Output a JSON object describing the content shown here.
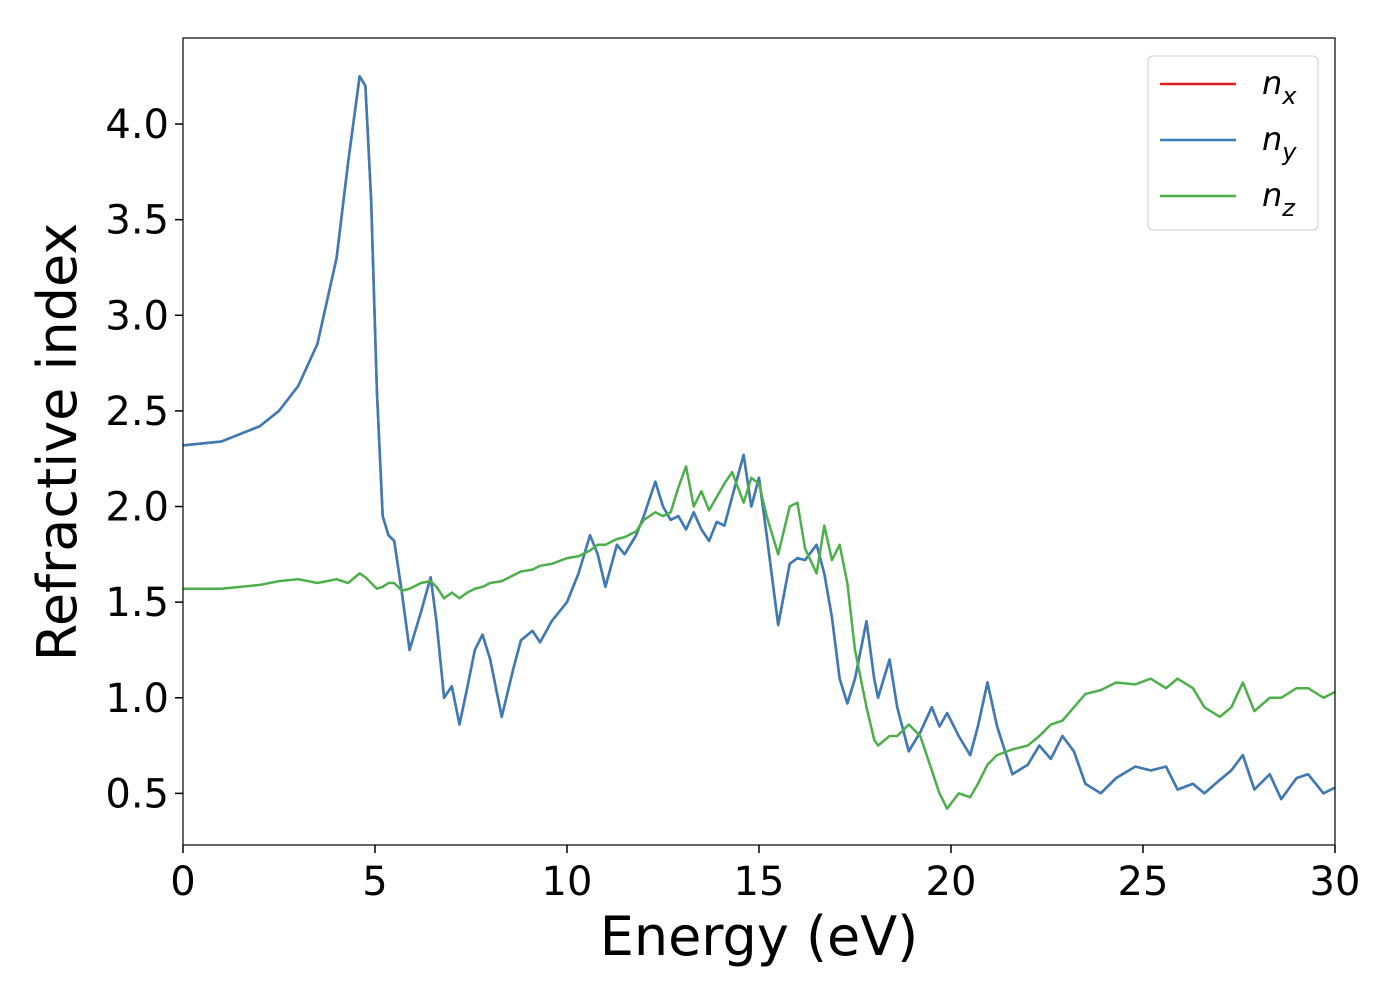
{
  "chart_data": {
    "type": "line",
    "xlabel": "Energy (eV)",
    "ylabel": "Refractive index",
    "x": [
      0,
      1,
      2,
      2.5,
      3,
      3.5,
      4,
      4.3,
      4.6,
      4.75,
      4.9,
      5.05,
      5.2,
      5.35,
      5.5,
      5.7,
      5.9,
      6.2,
      6.45,
      6.6,
      6.8,
      7.0,
      7.2,
      7.4,
      7.6,
      7.8,
      8.0,
      8.3,
      8.6,
      8.8,
      9.1,
      9.3,
      9.6,
      10.0,
      10.3,
      10.6,
      10.8,
      11.0,
      11.3,
      11.5,
      11.8,
      12.0,
      12.3,
      12.5,
      12.7,
      12.9,
      13.1,
      13.3,
      13.5,
      13.7,
      13.9,
      14.1,
      14.3,
      14.6,
      14.8,
      15.0,
      15.2,
      15.5,
      15.8,
      16.0,
      16.2,
      16.5,
      16.7,
      16.9,
      17.1,
      17.3,
      17.5,
      17.8,
      18.0,
      18.1,
      18.4,
      18.6,
      18.9,
      19.2,
      19.5,
      19.7,
      19.9,
      20.2,
      20.5,
      20.7,
      20.95,
      21.2,
      21.6,
      22.0,
      22.3,
      22.6,
      22.9,
      23.2,
      23.5,
      23.9,
      24.3,
      24.8,
      25.2,
      25.6,
      25.9,
      26.3,
      26.6,
      27.0,
      27.3,
      27.6,
      27.9,
      28.3,
      28.6,
      29.0,
      29.3,
      29.7,
      30
    ],
    "series": [
      {
        "name": "n_x",
        "color": "#e41a1c",
        "values": [
          2.32,
          2.34,
          2.42,
          2.5,
          2.63,
          2.85,
          3.3,
          3.8,
          4.25,
          4.2,
          3.6,
          2.6,
          1.95,
          1.85,
          1.82,
          1.55,
          1.25,
          1.45,
          1.63,
          1.4,
          1.0,
          1.06,
          0.86,
          1.05,
          1.25,
          1.33,
          1.2,
          0.9,
          1.15,
          1.3,
          1.35,
          1.29,
          1.4,
          1.5,
          1.65,
          1.85,
          1.75,
          1.58,
          1.8,
          1.75,
          1.85,
          1.95,
          2.13,
          2.0,
          1.93,
          1.95,
          1.88,
          1.97,
          1.88,
          1.82,
          1.92,
          1.9,
          2.05,
          2.27,
          2.0,
          2.15,
          1.85,
          1.38,
          1.7,
          1.73,
          1.72,
          1.8,
          1.65,
          1.42,
          1.1,
          0.97,
          1.1,
          1.4,
          1.1,
          1.0,
          1.2,
          0.95,
          0.72,
          0.82,
          0.95,
          0.85,
          0.92,
          0.8,
          0.7,
          0.85,
          1.08,
          0.85,
          0.6,
          0.65,
          0.75,
          0.68,
          0.8,
          0.72,
          0.55,
          0.5,
          0.58,
          0.64,
          0.62,
          0.64,
          0.52,
          0.55,
          0.5,
          0.57,
          0.62,
          0.7,
          0.52,
          0.6,
          0.47,
          0.58,
          0.6,
          0.5,
          0.53
        ]
      },
      {
        "name": "n_y",
        "color": "#377eb8",
        "values": [
          2.32,
          2.34,
          2.42,
          2.5,
          2.63,
          2.85,
          3.3,
          3.8,
          4.25,
          4.2,
          3.6,
          2.6,
          1.95,
          1.85,
          1.82,
          1.55,
          1.25,
          1.45,
          1.63,
          1.4,
          1.0,
          1.06,
          0.86,
          1.05,
          1.25,
          1.33,
          1.2,
          0.9,
          1.15,
          1.3,
          1.35,
          1.29,
          1.4,
          1.5,
          1.65,
          1.85,
          1.75,
          1.58,
          1.8,
          1.75,
          1.85,
          1.95,
          2.13,
          2.0,
          1.93,
          1.95,
          1.88,
          1.97,
          1.88,
          1.82,
          1.92,
          1.9,
          2.05,
          2.27,
          2.0,
          2.15,
          1.85,
          1.38,
          1.7,
          1.73,
          1.72,
          1.8,
          1.65,
          1.42,
          1.1,
          0.97,
          1.1,
          1.4,
          1.1,
          1.0,
          1.2,
          0.95,
          0.72,
          0.82,
          0.95,
          0.85,
          0.92,
          0.8,
          0.7,
          0.85,
          1.08,
          0.85,
          0.6,
          0.65,
          0.75,
          0.68,
          0.8,
          0.72,
          0.55,
          0.5,
          0.58,
          0.64,
          0.62,
          0.64,
          0.52,
          0.55,
          0.5,
          0.57,
          0.62,
          0.7,
          0.52,
          0.6,
          0.47,
          0.58,
          0.6,
          0.5,
          0.53
        ]
      },
      {
        "name": "n_z",
        "color": "#4daf4a",
        "values": [
          1.57,
          1.57,
          1.59,
          1.61,
          1.62,
          1.6,
          1.62,
          1.6,
          1.65,
          1.63,
          1.6,
          1.57,
          1.58,
          1.6,
          1.6,
          1.56,
          1.57,
          1.6,
          1.61,
          1.58,
          1.52,
          1.55,
          1.52,
          1.55,
          1.57,
          1.58,
          1.6,
          1.61,
          1.64,
          1.66,
          1.67,
          1.69,
          1.7,
          1.73,
          1.74,
          1.77,
          1.8,
          1.8,
          1.83,
          1.84,
          1.87,
          1.93,
          1.97,
          1.95,
          1.97,
          2.1,
          2.21,
          2.0,
          2.08,
          1.98,
          2.05,
          2.12,
          2.18,
          2.02,
          2.15,
          2.12,
          1.95,
          1.75,
          2.0,
          2.02,
          1.78,
          1.65,
          1.9,
          1.72,
          1.8,
          1.6,
          1.25,
          0.95,
          0.78,
          0.75,
          0.8,
          0.8,
          0.86,
          0.8,
          0.62,
          0.5,
          0.42,
          0.5,
          0.48,
          0.55,
          0.65,
          0.7,
          0.73,
          0.75,
          0.8,
          0.86,
          0.88,
          0.95,
          1.02,
          1.04,
          1.08,
          1.07,
          1.1,
          1.05,
          1.1,
          1.05,
          0.95,
          0.9,
          0.95,
          1.08,
          0.93,
          1.0,
          1.0,
          1.05,
          1.05,
          1.0,
          1.03
        ]
      }
    ],
    "xlim": [
      0,
      30
    ],
    "xticks": [
      0,
      5,
      10,
      15,
      20,
      25,
      30
    ],
    "ylim": [
      0.23,
      4.45
    ],
    "yticks": [
      0.5,
      {
        "value": 1,
        "label": "1.0"
      },
      1.5,
      {
        "value": 2,
        "label": "2.0"
      },
      2.5,
      {
        "value": 3,
        "label": "3.0"
      },
      3.5,
      {
        "value": 4,
        "label": "4.0"
      }
    ],
    "grid": false,
    "legend": "upper right"
  }
}
